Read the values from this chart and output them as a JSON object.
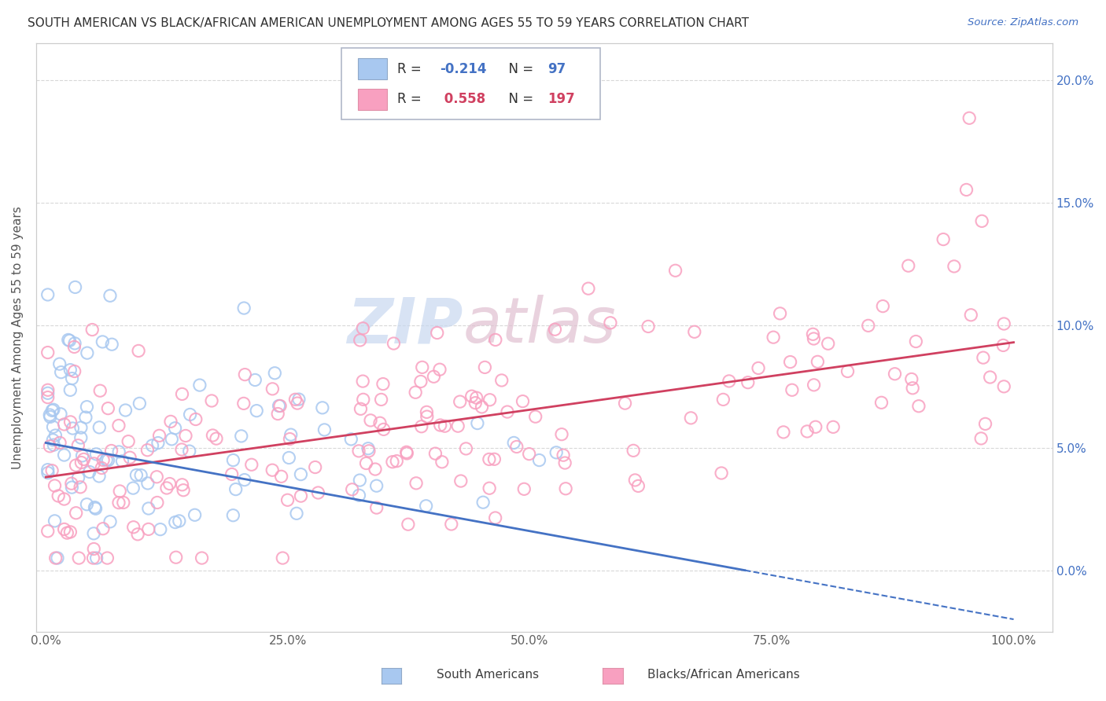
{
  "title": "SOUTH AMERICAN VS BLACK/AFRICAN AMERICAN UNEMPLOYMENT AMONG AGES 55 TO 59 YEARS CORRELATION CHART",
  "source": "Source: ZipAtlas.com",
  "ylabel": "Unemployment Among Ages 55 to 59 years",
  "color_south_american": "#a8c8f0",
  "color_black": "#f8a0c0",
  "color_line_south": "#4472c4",
  "color_line_black": "#d04060",
  "watermark_zip": "ZIP",
  "watermark_atlas": "atlas",
  "background_color": "#ffffff",
  "grid_color": "#d8d8d8",
  "title_color": "#303030",
  "right_axis_color": "#4472c4",
  "source_color": "#4472c4",
  "legend_r1_val": "-0.214",
  "legend_n1_val": "97",
  "legend_r2_val": "0.558",
  "legend_n2_val": "197",
  "ytick_positions": [
    0.0,
    0.05,
    0.1,
    0.15,
    0.2
  ],
  "ytick_labels": [
    "0.0%",
    "5.0%",
    "10.0%",
    "15.0%",
    "20.0%"
  ],
  "xtick_positions": [
    0.0,
    0.25,
    0.5,
    0.75,
    1.0
  ],
  "xtick_labels": [
    "0.0%",
    "25.0%",
    "50.0%",
    "75.0%",
    "100.0%"
  ],
  "xlim": [
    -0.01,
    1.04
  ],
  "ylim": [
    -0.025,
    0.215
  ],
  "line_south_x0": 0.0,
  "line_south_y0": 0.052,
  "line_south_x1": 1.0,
  "line_south_y1": -0.02,
  "line_black_x0": 0.0,
  "line_black_y0": 0.038,
  "line_black_x1": 1.0,
  "line_black_y1": 0.093
}
